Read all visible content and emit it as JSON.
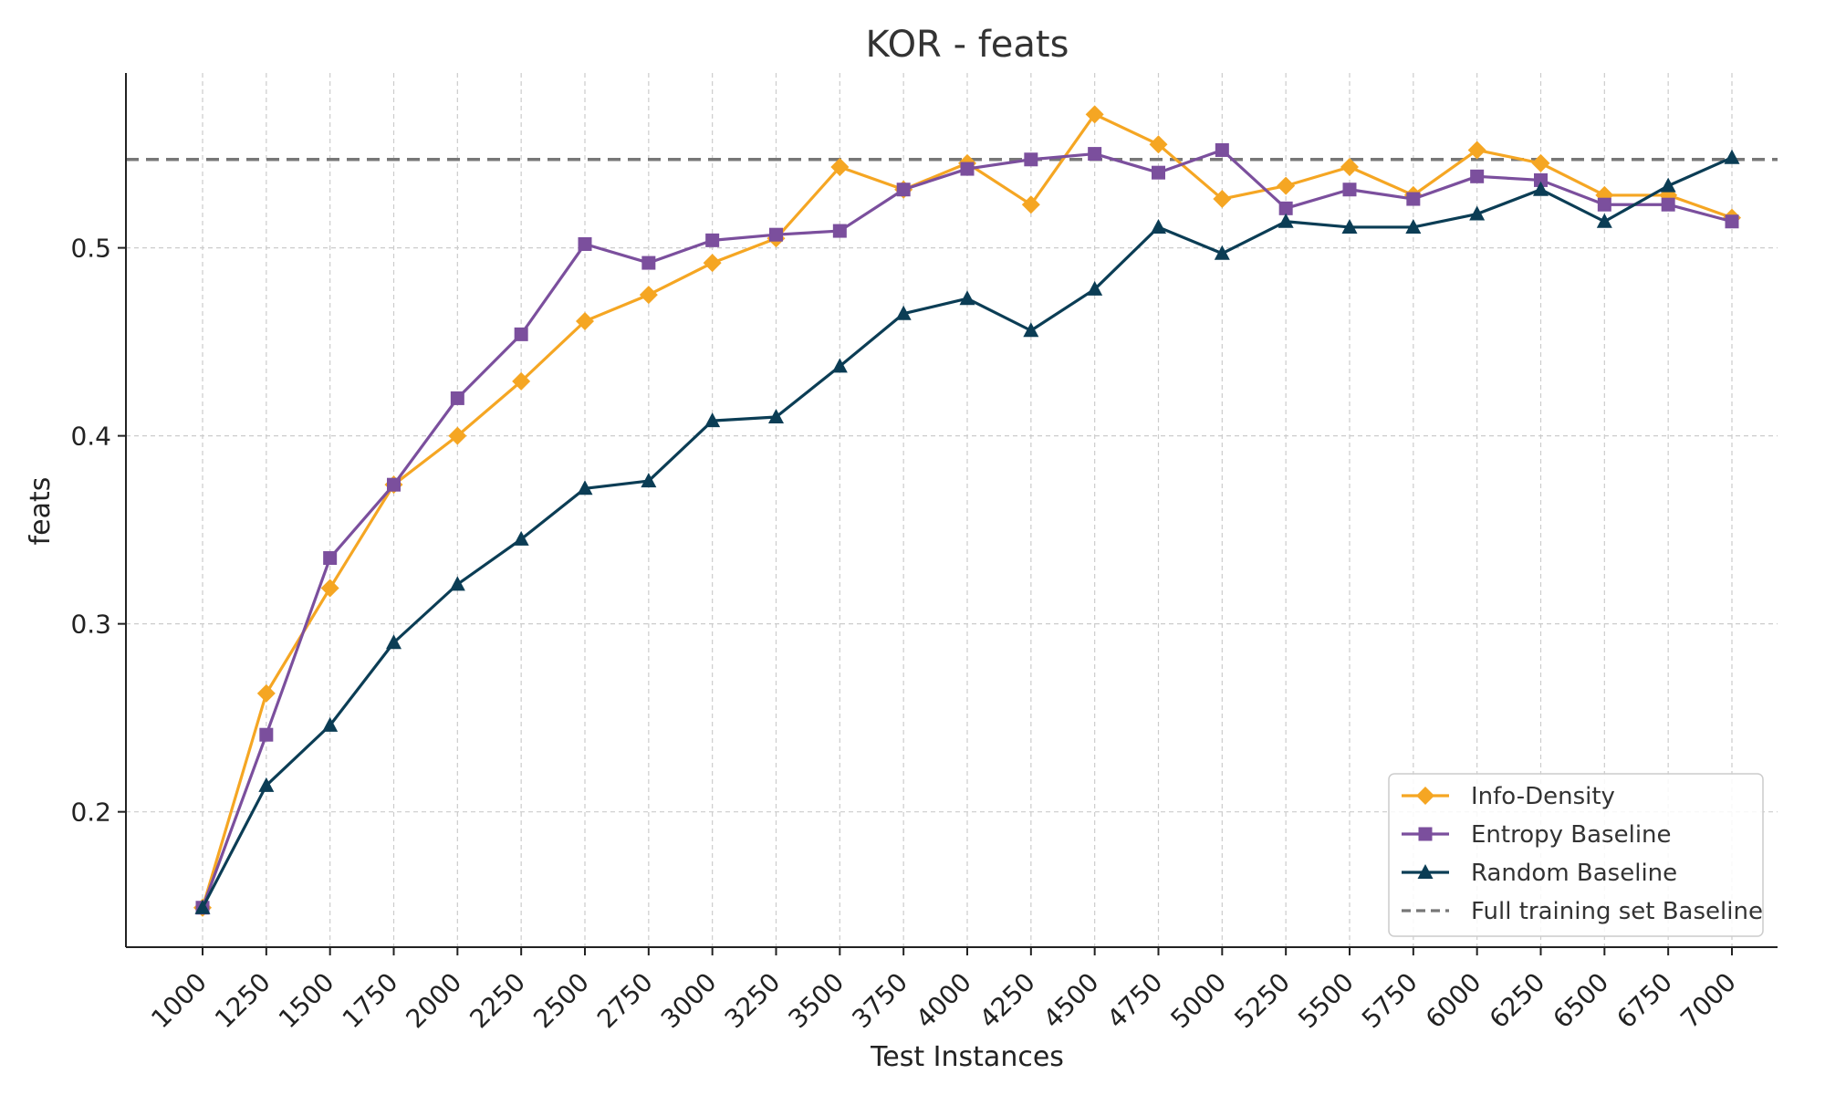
{
  "chart_data": {
    "type": "line",
    "title": "KOR - feats",
    "xlabel": "Test Instances",
    "ylabel": "feats",
    "x": [
      1000,
      1250,
      1500,
      1750,
      2000,
      2250,
      2500,
      2750,
      3000,
      3250,
      3500,
      3750,
      4000,
      4250,
      4500,
      4750,
      5000,
      5250,
      5500,
      5750,
      6000,
      6250,
      6500,
      6750,
      7000
    ],
    "xtick_labels": [
      "1000",
      "1250",
      "1500",
      "1750",
      "2000",
      "2250",
      "2500",
      "2750",
      "3000",
      "3250",
      "3500",
      "3750",
      "4000",
      "4250",
      "4500",
      "4750",
      "5000",
      "5250",
      "5500",
      "5750",
      "6000",
      "6250",
      "6500",
      "6750",
      "7000"
    ],
    "ylim": [
      0.128,
      0.593
    ],
    "yticks": [
      0.2,
      0.3,
      0.4,
      0.5
    ],
    "ytick_labels": [
      "0.2",
      "0.3",
      "0.4",
      "0.5"
    ],
    "grid": true,
    "legend_position": "bottom-right",
    "series": [
      {
        "name": "Info-Density",
        "color": "#F5A623",
        "marker": "diamond",
        "values": [
          0.149,
          0.263,
          0.319,
          0.374,
          0.4,
          0.429,
          0.461,
          0.475,
          0.492,
          0.505,
          0.543,
          0.531,
          0.545,
          0.523,
          0.571,
          0.555,
          0.526,
          0.533,
          0.543,
          0.528,
          0.552,
          0.545,
          0.528,
          0.528,
          0.516
        ]
      },
      {
        "name": "Entropy Baseline",
        "color": "#7B4F9D",
        "marker": "square",
        "values": [
          0.149,
          0.241,
          0.335,
          0.374,
          0.42,
          0.454,
          0.502,
          0.492,
          0.504,
          0.507,
          0.509,
          0.531,
          0.542,
          0.547,
          0.55,
          0.54,
          0.552,
          0.521,
          0.531,
          0.526,
          0.538,
          0.536,
          0.523,
          0.523,
          0.514
        ]
      },
      {
        "name": "Random Baseline",
        "color": "#0B3D55",
        "marker": "triangle",
        "values": [
          0.149,
          0.214,
          0.246,
          0.29,
          0.321,
          0.345,
          0.372,
          0.376,
          0.408,
          0.41,
          0.437,
          0.465,
          0.473,
          0.456,
          0.478,
          0.511,
          0.497,
          0.514,
          0.511,
          0.511,
          0.518,
          0.531,
          0.514,
          0.533,
          0.548
        ]
      }
    ],
    "reference_line": {
      "name": "Full training set Baseline",
      "value": 0.547,
      "color": "#777777",
      "style": "dashed"
    }
  }
}
